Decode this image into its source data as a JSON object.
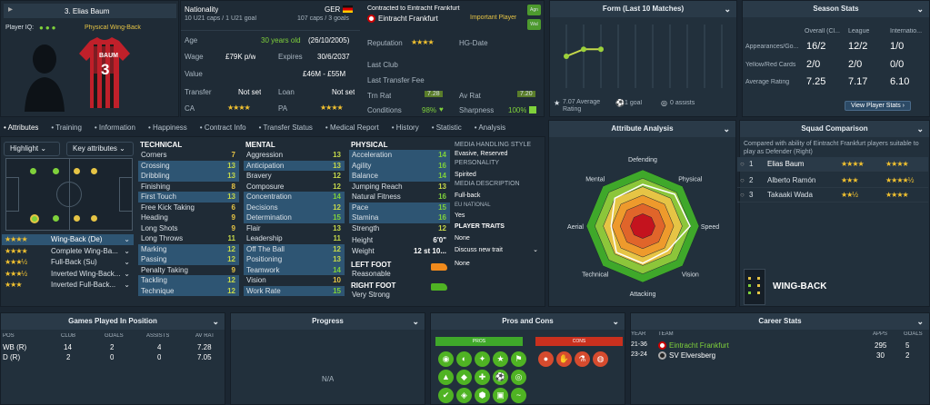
{
  "player": {
    "number_name": "3. Elias Baum",
    "iq_label": "Player IQ:",
    "role": "Physical Wing-Back",
    "shirt_name": "BAUM",
    "shirt_number": "3"
  },
  "info": {
    "nationality_label": "Nationality",
    "caps": "10 U21 caps / 1 U21 goal",
    "nation": "GER",
    "senior_caps": "107 caps / 3 goals",
    "contract_label": "Contracted to Eintracht Frankfurt",
    "club": "Eintracht Frankfurt",
    "squad_status": "Important Player",
    "age_label": "Age",
    "age_value": "30 years old",
    "dob": "(26/10/2005)",
    "wage_label": "Wage",
    "wage_value": "£79K p/w",
    "expires_label": "Expires",
    "expires_value": "30/6/2037",
    "value_label": "Value",
    "value_value": "£46M - £55M",
    "transfer_label": "Transfer",
    "transfer_value": "Not set",
    "loan_label": "Loan",
    "loan_value": "Not set",
    "ca_label": "CA",
    "pa_label": "PA",
    "reputation_label": "Reputation",
    "hg_label": "HG-Date",
    "last_club_label": "Last Club",
    "last_fee_label": "Last Transfer Fee",
    "trn_label": "Trn Rat",
    "trn_value": "7.28",
    "av_label": "Av Rat",
    "av_value": "7.20",
    "conditions_label": "Conditions",
    "conditions_value": "98%",
    "sharpness_label": "Sharpness",
    "sharpness_value": "100%"
  },
  "form": {
    "title": "Form (Last 10 Matches)",
    "avg": "7.07 Average Rating",
    "goals": "1 goal",
    "assists": "0 assists",
    "points": [
      7.0,
      7.1,
      7.1,
      7.0,
      7.1,
      7.0,
      7.1,
      7.0,
      7.1,
      7.1
    ]
  },
  "season": {
    "title": "Season Stats",
    "cols": [
      "Overall (Cl...",
      "League",
      "Internatio..."
    ],
    "rows": [
      {
        "label": "Appearances/Go...",
        "vals": [
          "16/2",
          "12/2",
          "1/0"
        ]
      },
      {
        "label": "Yellow/Red Cards",
        "vals": [
          "2/0",
          "2/0",
          "0/0"
        ]
      },
      {
        "label": "Average Rating",
        "vals": [
          "7.25",
          "7.17",
          "6.10"
        ]
      }
    ],
    "button": "View Player Stats"
  },
  "tabs": [
    "Attributes",
    "Training",
    "Information",
    "Happiness",
    "Contract Info",
    "Transfer Status",
    "Medical Report",
    "History",
    "Statistic",
    "Analysis"
  ],
  "controls": {
    "highlight": "Highlight",
    "key_attributes": "Key attributes"
  },
  "roles": [
    {
      "stars": "★★★★",
      "name": "Wing-Back (De)"
    },
    {
      "stars": "★★★★",
      "name": "Complete Wing-Ba..."
    },
    {
      "stars": "★★★½",
      "name": "Full-Back (Su)"
    },
    {
      "stars": "★★★½",
      "name": "Inverted Wing-Back..."
    },
    {
      "stars": "★★★",
      "name": "Inverted Full-Back..."
    }
  ],
  "technical": {
    "title": "TECHNICAL",
    "rows": [
      {
        "n": "Corners",
        "v": "7"
      },
      {
        "n": "Crossing",
        "v": "13"
      },
      {
        "n": "Dribbling",
        "v": "13"
      },
      {
        "n": "Finishing",
        "v": "8"
      },
      {
        "n": "First Touch",
        "v": "13"
      },
      {
        "n": "Free Kick Taking",
        "v": "6"
      },
      {
        "n": "Heading",
        "v": "9"
      },
      {
        "n": "Long Shots",
        "v": "9"
      },
      {
        "n": "Long Throws",
        "v": "11"
      },
      {
        "n": "Marking",
        "v": "12"
      },
      {
        "n": "Passing",
        "v": "12"
      },
      {
        "n": "Penalty Taking",
        "v": "9"
      },
      {
        "n": "Tackling",
        "v": "12"
      },
      {
        "n": "Technique",
        "v": "12"
      }
    ]
  },
  "mental": {
    "title": "MENTAL",
    "rows": [
      {
        "n": "Aggression",
        "v": "13"
      },
      {
        "n": "Anticipation",
        "v": "13"
      },
      {
        "n": "Bravery",
        "v": "12"
      },
      {
        "n": "Composure",
        "v": "12"
      },
      {
        "n": "Concentration",
        "v": "14"
      },
      {
        "n": "Decisions",
        "v": "12"
      },
      {
        "n": "Determination",
        "v": "15"
      },
      {
        "n": "Flair",
        "v": "13"
      },
      {
        "n": "Leadership",
        "v": "11"
      },
      {
        "n": "Off The Ball",
        "v": "12"
      },
      {
        "n": "Positioning",
        "v": "13"
      },
      {
        "n": "Teamwork",
        "v": "14"
      },
      {
        "n": "Vision",
        "v": "10"
      },
      {
        "n": "Work Rate",
        "v": "15"
      }
    ]
  },
  "physical": {
    "title": "PHYSICAL",
    "rows": [
      {
        "n": "Acceleration",
        "v": "14"
      },
      {
        "n": "Agility",
        "v": "16"
      },
      {
        "n": "Balance",
        "v": "14"
      },
      {
        "n": "Jumping Reach",
        "v": "13"
      },
      {
        "n": "Natural Fitness",
        "v": "16"
      },
      {
        "n": "Pace",
        "v": "15"
      },
      {
        "n": "Stamina",
        "v": "16"
      },
      {
        "n": "Strength",
        "v": "12"
      }
    ],
    "height_label": "Height",
    "height": "6'0\"",
    "weight_label": "Weight",
    "weight": "12 st 10..."
  },
  "feet": {
    "left_label": "LEFT FOOT",
    "left": "Reasonable",
    "right_label": "RIGHT FOOT",
    "right": "Very Strong"
  },
  "media": {
    "style_label": "MEDIA HANDLING STYLE",
    "style": "Evasive, Reserved",
    "personality_label": "PERSONALITY",
    "personality": "Spirited",
    "desc_label": "MEDIA DESCRIPTION",
    "desc": "Full-back",
    "eu_label": "EU NATIONAL",
    "eu": "Yes",
    "traits_label": "PLAYER TRAITS",
    "traits": "None",
    "discuss": "Discuss new trait",
    "traits2": "None"
  },
  "analysis": {
    "title": "Attribute Analysis",
    "labels": [
      "Defending",
      "Physical",
      "Speed",
      "Vision",
      "Attacking",
      "Technical",
      "Aerial",
      "Mental"
    ],
    "values": [
      0.74,
      0.8,
      0.84,
      0.62,
      0.66,
      0.66,
      0.56,
      0.7
    ]
  },
  "squad": {
    "title": "Squad Comparison",
    "desc": "Compared with ability of Eintracht Frankfurt players suitable to play as Defender (Right)",
    "rows": [
      {
        "rank": "1",
        "name": "Elias Baum",
        "ca": "★★★★",
        "pa": "★★★★"
      },
      {
        "rank": "2",
        "name": "Alberto Ramón",
        "ca": "★★★",
        "pa": "★★★★½"
      },
      {
        "rank": "3",
        "name": "Takaaki Wada",
        "ca": "★★½",
        "pa": "★★★★"
      }
    ],
    "position": "WING-BACK"
  },
  "games": {
    "title": "Games Played In Position",
    "cols": [
      "POS",
      "CLUB",
      "GOALS",
      "ASSISTS",
      "AV RAT"
    ],
    "rows": [
      [
        "WB (R)",
        "14",
        "2",
        "4",
        "7.28"
      ],
      [
        "D (R)",
        "2",
        "0",
        "0",
        "7.05"
      ]
    ]
  },
  "progress": {
    "title": "Progress",
    "na": "N/A"
  },
  "proscons": {
    "title": "Pros and Cons",
    "pros": "PROS",
    "cons": "CONS"
  },
  "career": {
    "title": "Career Stats",
    "cols": [
      "YEAR",
      "TEAM",
      "APPS",
      "GOALS"
    ],
    "rows": [
      [
        "21-36",
        "Eintracht Frankfurt",
        "295",
        "5"
      ],
      [
        "23-24",
        "SV Elversberg",
        "30",
        "2"
      ]
    ]
  },
  "colors": {
    "bg": "#1b2631",
    "panel": "#22303c",
    "header": "#2a3a48",
    "highlight": "#2e5573",
    "green": "#7fd13b",
    "star": "#f2c230"
  }
}
